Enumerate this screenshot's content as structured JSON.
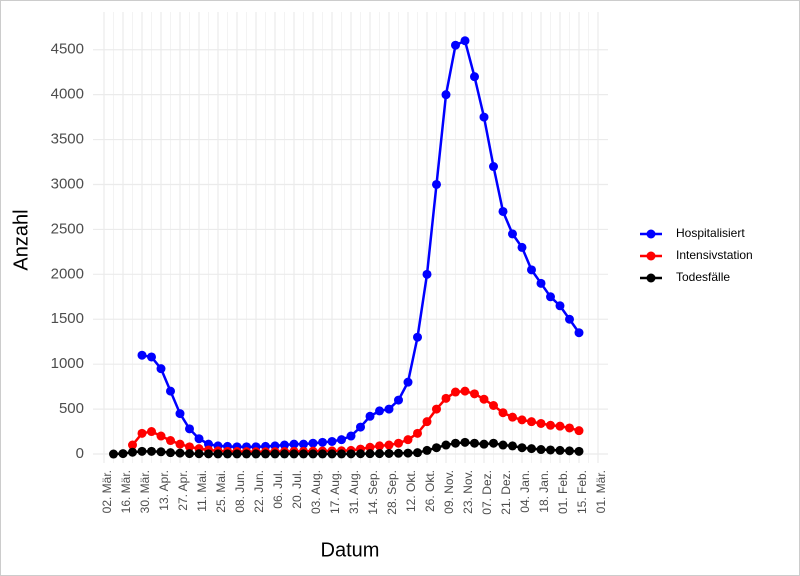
{
  "chart_data": {
    "type": "line",
    "x_label": "Datum",
    "y_label": "Anzahl",
    "x": [
      "02. Mär.",
      null,
      "16. Mär.",
      null,
      "30. Mär.",
      null,
      "13. Apr.",
      null,
      "27. Apr.",
      null,
      "11. Mai.",
      null,
      "25. Mai.",
      null,
      "08. Jun.",
      null,
      "22. Jun.",
      null,
      "06. Jul.",
      null,
      "20. Jul.",
      null,
      "03. Aug.",
      null,
      "17. Aug.",
      null,
      "31. Aug.",
      null,
      "14. Sep.",
      null,
      "28. Sep.",
      null,
      "12. Okt.",
      null,
      "26. Okt.",
      null,
      "09. Nov.",
      null,
      "23. Nov.",
      null,
      "07. Dez.",
      null,
      "21. Dez.",
      null,
      "04. Jan.",
      null,
      "18. Jan.",
      null,
      "01. Feb.",
      null,
      "15. Feb.",
      null,
      "01. Mär."
    ],
    "series": [
      {
        "name": "Hospitalisiert",
        "color": "#0000ff",
        "values": [
          null,
          null,
          null,
          null,
          1100,
          1080,
          950,
          700,
          450,
          280,
          170,
          110,
          90,
          85,
          80,
          80,
          80,
          85,
          90,
          100,
          110,
          110,
          120,
          130,
          140,
          160,
          200,
          300,
          420,
          480,
          500,
          600,
          800,
          1300,
          2000,
          3000,
          4000,
          4550,
          4600,
          4200,
          3750,
          3200,
          2700,
          2450,
          2300,
          2050,
          1900,
          1750,
          1650,
          1500,
          1350,
          null,
          null
        ]
      },
      {
        "name": "Intensivstation",
        "color": "#ff0000",
        "values": [
          null,
          null,
          null,
          100,
          230,
          250,
          200,
          150,
          110,
          80,
          60,
          45,
          35,
          30,
          28,
          26,
          25,
          25,
          26,
          28,
          30,
          30,
          32,
          33,
          35,
          36,
          40,
          55,
          75,
          90,
          100,
          120,
          160,
          230,
          360,
          500,
          620,
          690,
          700,
          670,
          610,
          540,
          460,
          410,
          380,
          360,
          340,
          320,
          310,
          290,
          260,
          null,
          null
        ]
      },
      {
        "name": "Todesfälle",
        "color": "#000000",
        "values": [
          null,
          0,
          5,
          20,
          30,
          30,
          25,
          15,
          10,
          5,
          3,
          2,
          1,
          1,
          1,
          1,
          1,
          1,
          1,
          1,
          1,
          1,
          1,
          1,
          1,
          1,
          2,
          3,
          4,
          5,
          6,
          8,
          10,
          15,
          40,
          70,
          100,
          120,
          130,
          120,
          110,
          120,
          100,
          90,
          70,
          60,
          50,
          45,
          40,
          35,
          30,
          null,
          null
        ]
      }
    ],
    "ylim": [
      -100,
      4920
    ],
    "yticks": [
      0,
      500,
      1000,
      1500,
      2000,
      2500,
      3000,
      3500,
      4000,
      4500
    ],
    "grid": true
  }
}
